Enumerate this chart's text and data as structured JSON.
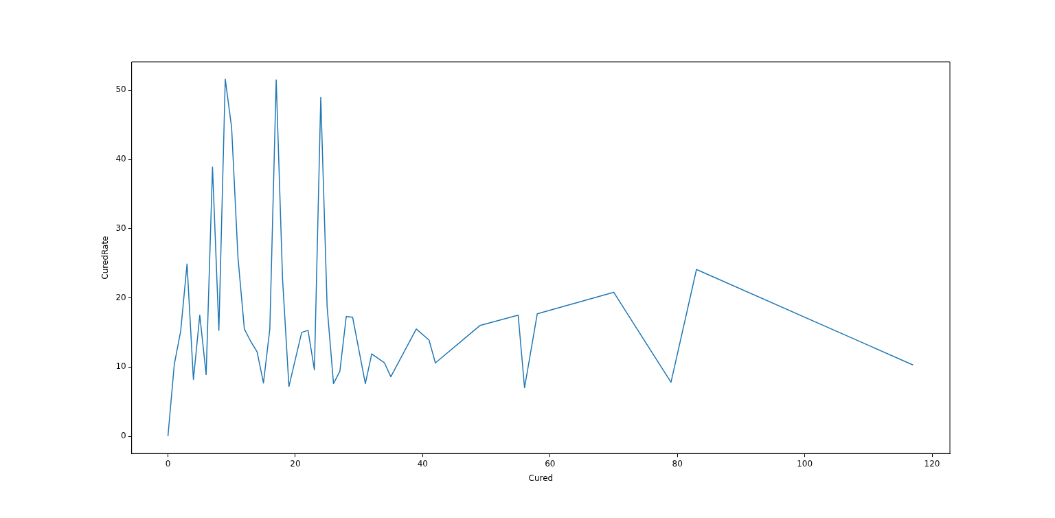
{
  "chart_data": {
    "type": "line",
    "xlabel": "Cured",
    "ylabel": "CuredRate",
    "x": [
      0,
      1,
      2,
      3,
      4,
      5,
      6,
      7,
      8,
      9,
      10,
      11,
      12,
      13,
      14,
      15,
      16,
      17,
      18,
      19,
      21,
      22,
      23,
      24,
      25,
      26,
      27,
      28,
      29,
      31,
      32,
      34,
      35,
      39,
      41,
      42,
      49,
      55,
      56,
      58,
      70,
      79,
      83,
      117
    ],
    "series": [
      {
        "color": "#1f77b4",
        "values": [
          0,
          10.4,
          15.2,
          24.9,
          8.2,
          17.5,
          8.9,
          38.9,
          15.3,
          51.6,
          44.6,
          25.8,
          15.5,
          13.7,
          12.2,
          7.7,
          15.5,
          51.5,
          22.7,
          7.2,
          15.0,
          15.3,
          9.6,
          49.0,
          18.7,
          7.6,
          9.4,
          17.3,
          17.2,
          7.6,
          11.9,
          10.6,
          8.6,
          15.5,
          13.9,
          10.6,
          16.0,
          17.5,
          7.0,
          17.7,
          20.8,
          7.8,
          24.1,
          10.3
        ]
      }
    ],
    "xlim": [
      -5.7,
      122.8
    ],
    "ylim": [
      -2.5,
      54.1
    ],
    "xticks": [
      0,
      20,
      40,
      60,
      80,
      100,
      120
    ],
    "yticks": [
      0,
      10,
      20,
      30,
      40,
      50
    ],
    "grid": false,
    "legend": false,
    "marker": "none",
    "line_style": "solid"
  }
}
